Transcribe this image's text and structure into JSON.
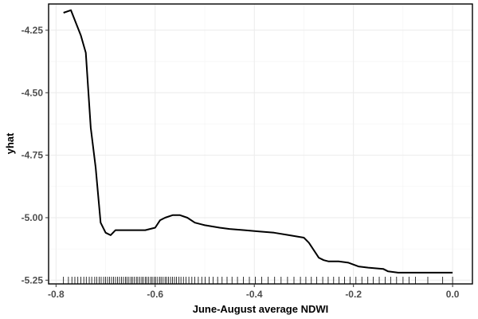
{
  "chart_data": {
    "type": "line",
    "title": "",
    "xlabel": "June-August average NDWI",
    "ylabel": "yhat",
    "xlim": [
      -0.815,
      0.04
    ],
    "ylim": [
      -5.265,
      -4.145
    ],
    "xticks": [
      -0.8,
      -0.6,
      -0.4,
      -0.2,
      0.0
    ],
    "xtick_labels": [
      "-0.8",
      "-0.6",
      "-0.4",
      "-0.2",
      "0.0"
    ],
    "yticks": [
      -4.25,
      -4.5,
      -4.75,
      -5.0,
      -5.25
    ],
    "ytick_labels": [
      "-4.25",
      "-4.50",
      "-4.75",
      "-5.00",
      "-5.25"
    ],
    "grid": true,
    "legend": "none",
    "series": [
      {
        "x": [
          -0.785,
          -0.77,
          -0.76,
          -0.75,
          -0.74,
          -0.73,
          -0.72,
          -0.71,
          -0.7,
          -0.69,
          -0.68,
          -0.675,
          -0.665,
          -0.655,
          -0.64,
          -0.62,
          -0.6,
          -0.59,
          -0.58,
          -0.565,
          -0.55,
          -0.535,
          -0.52,
          -0.5,
          -0.47,
          -0.45,
          -0.42,
          -0.39,
          -0.36,
          -0.33,
          -0.3,
          -0.29,
          -0.28,
          -0.27,
          -0.26,
          -0.25,
          -0.23,
          -0.21,
          -0.19,
          -0.17,
          -0.14,
          -0.13,
          -0.11,
          -0.08,
          -0.05,
          -0.02,
          0.0
        ],
        "y": [
          -4.18,
          -4.17,
          -4.22,
          -4.27,
          -4.34,
          -4.64,
          -4.8,
          -5.02,
          -5.06,
          -5.07,
          -5.05,
          -5.05,
          -5.05,
          -5.05,
          -5.05,
          -5.05,
          -5.04,
          -5.01,
          -5.0,
          -4.99,
          -4.99,
          -5.0,
          -5.02,
          -5.03,
          -5.04,
          -5.045,
          -5.05,
          -5.055,
          -5.06,
          -5.07,
          -5.08,
          -5.1,
          -5.13,
          -5.16,
          -5.17,
          -5.175,
          -5.175,
          -5.18,
          -5.195,
          -5.2,
          -5.205,
          -5.215,
          -5.22,
          -5.22,
          -5.22,
          -5.22,
          -5.22
        ]
      }
    ],
    "rug_x": [
      -0.785,
      -0.775,
      -0.768,
      -0.762,
      -0.756,
      -0.75,
      -0.744,
      -0.739,
      -0.733,
      -0.728,
      -0.722,
      -0.718,
      -0.713,
      -0.709,
      -0.704,
      -0.7,
      -0.696,
      -0.692,
      -0.688,
      -0.684,
      -0.68,
      -0.676,
      -0.672,
      -0.668,
      -0.664,
      -0.66,
      -0.657,
      -0.653,
      -0.649,
      -0.646,
      -0.642,
      -0.638,
      -0.635,
      -0.631,
      -0.627,
      -0.624,
      -0.62,
      -0.617,
      -0.613,
      -0.609,
      -0.606,
      -0.602,
      -0.599,
      -0.595,
      -0.591,
      -0.588,
      -0.584,
      -0.58,
      -0.577,
      -0.573,
      -0.569,
      -0.565,
      -0.561,
      -0.557,
      -0.552,
      -0.548,
      -0.543,
      -0.538,
      -0.532,
      -0.526,
      -0.52,
      -0.513,
      -0.506,
      -0.499,
      -0.491,
      -0.483,
      -0.474,
      -0.465,
      -0.455,
      -0.445,
      -0.434,
      -0.422,
      -0.41,
      -0.398,
      -0.385,
      -0.372,
      -0.359,
      -0.346,
      -0.333,
      -0.32,
      -0.307,
      -0.296,
      -0.285,
      -0.274,
      -0.262,
      -0.251,
      -0.24,
      -0.229,
      -0.218,
      -0.207,
      -0.195,
      -0.183,
      -0.171,
      -0.16,
      -0.148,
      -0.136,
      -0.125,
      -0.113,
      -0.1,
      -0.088,
      -0.075,
      -0.05,
      -0.02,
      0.0
    ]
  }
}
